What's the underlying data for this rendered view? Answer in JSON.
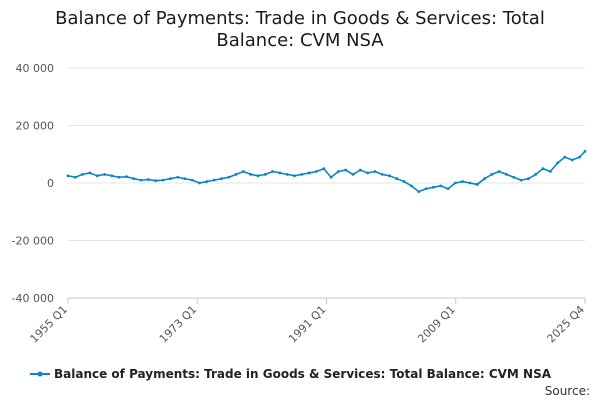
{
  "chart_data": {
    "type": "line",
    "title": "Balance of Payments: Trade in Goods & Services: Total Balance: CVM NSA",
    "title_lines": [
      "Balance of Payments: Trade in Goods & Services: Total",
      "Balance: CVM NSA"
    ],
    "xlabel": "",
    "ylabel": "",
    "x_tick_labels": [
      "1955 Q1",
      "1973 Q1",
      "1991 Q1",
      "2009 Q1",
      "2025 Q4"
    ],
    "y_tick_labels": [
      "40 000",
      "20 000",
      "0",
      "-20 000",
      "-40 000"
    ],
    "y_ticks": [
      40000,
      20000,
      0,
      -20000,
      -40000
    ],
    "xlim": [
      1955.0,
      2025.75
    ],
    "ylim": [
      -40000,
      40000
    ],
    "grid": true,
    "legend_position": "bottom",
    "source_label": "Source:",
    "series": [
      {
        "name": "Balance of Payments: Trade in Goods & Services: Total Balance: CVM NSA",
        "color": "#0b84c6",
        "points": [
          [
            1955.0,
            2500
          ],
          [
            1956.0,
            2000
          ],
          [
            1957.0,
            3000
          ],
          [
            1958.0,
            3500
          ],
          [
            1959.0,
            2500
          ],
          [
            1960.0,
            3000
          ],
          [
            1961.0,
            2500
          ],
          [
            1962.0,
            2000
          ],
          [
            1963.0,
            2200
          ],
          [
            1964.0,
            1500
          ],
          [
            1965.0,
            1000
          ],
          [
            1966.0,
            1200
          ],
          [
            1967.0,
            800
          ],
          [
            1968.0,
            1000
          ],
          [
            1969.0,
            1500
          ],
          [
            1970.0,
            2000
          ],
          [
            1971.0,
            1500
          ],
          [
            1972.0,
            1000
          ],
          [
            1973.0,
            0
          ],
          [
            1974.0,
            500
          ],
          [
            1975.0,
            1000
          ],
          [
            1976.0,
            1500
          ],
          [
            1977.0,
            2000
          ],
          [
            1978.0,
            3000
          ],
          [
            1979.0,
            4000
          ],
          [
            1980.0,
            3000
          ],
          [
            1981.0,
            2500
          ],
          [
            1982.0,
            3000
          ],
          [
            1983.0,
            4000
          ],
          [
            1984.0,
            3500
          ],
          [
            1985.0,
            3000
          ],
          [
            1986.0,
            2500
          ],
          [
            1987.0,
            3000
          ],
          [
            1988.0,
            3500
          ],
          [
            1989.0,
            4000
          ],
          [
            1990.0,
            5000
          ],
          [
            1991.0,
            2000
          ],
          [
            1992.0,
            4000
          ],
          [
            1993.0,
            4500
          ],
          [
            1994.0,
            3000
          ],
          [
            1995.0,
            4500
          ],
          [
            1996.0,
            3500
          ],
          [
            1997.0,
            4000
          ],
          [
            1998.0,
            3000
          ],
          [
            1999.0,
            2500
          ],
          [
            2000.0,
            1500
          ],
          [
            2001.0,
            500
          ],
          [
            2002.0,
            -1000
          ],
          [
            2003.0,
            -3000
          ],
          [
            2004.0,
            -2000
          ],
          [
            2005.0,
            -1500
          ],
          [
            2006.0,
            -1000
          ],
          [
            2007.0,
            -2000
          ],
          [
            2008.0,
            0
          ],
          [
            2009.0,
            500
          ],
          [
            2010.0,
            0
          ],
          [
            2011.0,
            -500
          ],
          [
            2012.0,
            1500
          ],
          [
            2013.0,
            3000
          ],
          [
            2014.0,
            4000
          ],
          [
            2015.0,
            3000
          ],
          [
            2016.0,
            2000
          ],
          [
            2017.0,
            1000
          ],
          [
            2018.0,
            1500
          ],
          [
            2019.0,
            3000
          ],
          [
            2020.0,
            5000
          ],
          [
            2021.0,
            4000
          ],
          [
            2022.0,
            7000
          ],
          [
            2023.0,
            9000
          ],
          [
            2024.0,
            8000
          ],
          [
            2025.0,
            9000
          ],
          [
            2025.75,
            11000
          ]
        ]
      }
    ]
  }
}
